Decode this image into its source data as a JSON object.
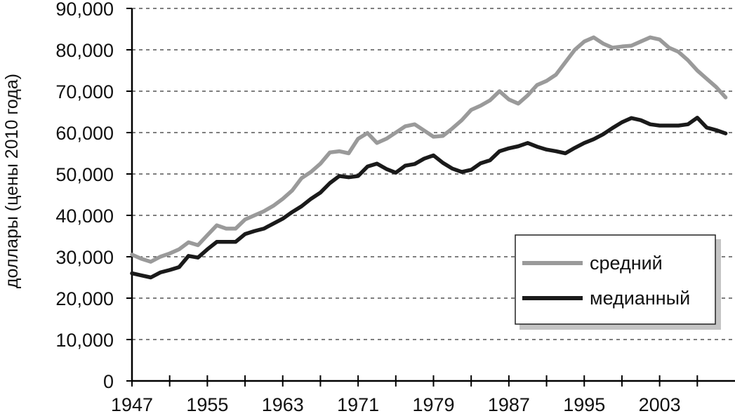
{
  "chart_data": {
    "type": "line",
    "title": "",
    "xlabel": "",
    "ylabel": "доллары (цены 2010 года)",
    "xlim": [
      1947,
      2011
    ],
    "ylim": [
      0,
      90000
    ],
    "x_tick_labels": [
      "1947",
      "1955",
      "1963",
      "1971",
      "1979",
      "1987",
      "1995",
      "2003"
    ],
    "x_tick_values": [
      1947,
      1955,
      1963,
      1971,
      1979,
      1987,
      1995,
      2003
    ],
    "y_tick_labels": [
      "0",
      "10,000",
      "20,000",
      "30,000",
      "40,000",
      "50,000",
      "60,000",
      "70,000",
      "80,000",
      "90,000"
    ],
    "y_tick_values": [
      0,
      10000,
      20000,
      30000,
      40000,
      50000,
      60000,
      70000,
      80000,
      90000
    ],
    "grid": true,
    "legend_position": "lower-right",
    "series": [
      {
        "name": "средний",
        "color": "#9a9a9a",
        "x": [
          1947,
          1948,
          1949,
          1950,
          1951,
          1952,
          1953,
          1954,
          1955,
          1956,
          1957,
          1958,
          1959,
          1960,
          1961,
          1962,
          1963,
          1964,
          1965,
          1966,
          1967,
          1968,
          1969,
          1970,
          1971,
          1972,
          1973,
          1974,
          1975,
          1976,
          1977,
          1978,
          1979,
          1980,
          1981,
          1982,
          1983,
          1984,
          1985,
          1986,
          1987,
          1988,
          1989,
          1990,
          1991,
          1992,
          1993,
          1994,
          1995,
          1996,
          1997,
          1998,
          1999,
          2000,
          2001,
          2002,
          2003,
          2004,
          2005,
          2006,
          2007,
          2008,
          2009,
          2010
        ],
        "values": [
          30500,
          29500,
          28800,
          30000,
          30800,
          31800,
          33500,
          32800,
          35200,
          37600,
          36800,
          36800,
          39000,
          40000,
          41000,
          42300,
          44000,
          46000,
          49000,
          50500,
          52500,
          55200,
          55500,
          55000,
          58500,
          59900,
          57500,
          58500,
          60000,
          61500,
          62000,
          60500,
          59000,
          59200,
          61000,
          63000,
          65500,
          66500,
          67800,
          70000,
          68000,
          67000,
          69000,
          71500,
          72500,
          74000,
          77000,
          80000,
          82000,
          83000,
          81500,
          80500,
          80800,
          81000,
          82000,
          83000,
          82500,
          80500,
          79500,
          77500,
          75000,
          73000,
          71000,
          68500
        ],
        "visible_until": 2011
      },
      {
        "name": "медианный",
        "color": "#1a1a1a",
        "x": [
          1947,
          1948,
          1949,
          1950,
          1951,
          1952,
          1953,
          1954,
          1955,
          1956,
          1957,
          1958,
          1959,
          1960,
          1961,
          1962,
          1963,
          1964,
          1965,
          1966,
          1967,
          1968,
          1969,
          1970,
          1971,
          1972,
          1973,
          1974,
          1975,
          1976,
          1977,
          1978,
          1979,
          1980,
          1981,
          1982,
          1983,
          1984,
          1985,
          1986,
          1987,
          1988,
          1989,
          1990,
          1991,
          1992,
          1993,
          1994,
          1995,
          1996,
          1997,
          1998,
          1999,
          2000,
          2001,
          2002,
          2003,
          2004,
          2005,
          2006,
          2007,
          2008,
          2009,
          2010
        ],
        "values": [
          26000,
          25500,
          25000,
          26200,
          26800,
          27500,
          30200,
          29800,
          31800,
          33600,
          33600,
          33600,
          35500,
          36200,
          36800,
          38000,
          39200,
          40800,
          42200,
          44000,
          45500,
          47800,
          49500,
          49200,
          49500,
          51800,
          52500,
          51200,
          50300,
          52000,
          52400,
          53700,
          54500,
          52700,
          51300,
          50500,
          51000,
          52600,
          53300,
          55500,
          56200,
          56700,
          57500,
          56600,
          55900,
          55500,
          55000,
          56300,
          57500,
          58400,
          59600,
          61100,
          62500,
          63500,
          63000,
          62000,
          61700,
          61700,
          61700,
          62000,
          63600,
          61200,
          60600,
          59800
        ],
        "visible_until": 2011
      }
    ]
  }
}
